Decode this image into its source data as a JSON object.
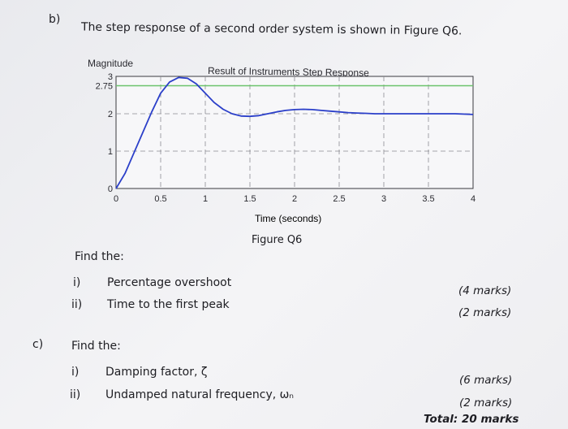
{
  "part_b": {
    "letter": "b)",
    "question": "The step response of a second order system is shown in Figure Q6.",
    "find_label": "Find the:",
    "items": [
      {
        "num": "i)",
        "text": "Percentage overshoot",
        "marks": "(4 marks)"
      },
      {
        "num": "ii)",
        "text": "Time to the first peak",
        "marks": "(2 marks)"
      }
    ]
  },
  "figure": {
    "caption": "Figure Q6"
  },
  "part_c": {
    "letter": "c)",
    "find_label": "Find the:",
    "items": [
      {
        "num": "i)",
        "text": "Damping factor, ζ",
        "marks": "(6 marks)"
      },
      {
        "num": "ii)",
        "text": "Undamped natural frequency, ωₙ",
        "marks": "(2 marks)"
      }
    ],
    "total": "Total: 20 marks"
  },
  "chart_data": {
    "type": "line",
    "title": "Result of Instruments Step Response",
    "xlabel": "Time (seconds)",
    "ylabel": "Magnitude",
    "xlim": [
      0,
      4
    ],
    "ylim": [
      0,
      3
    ],
    "x_ticks": [
      "0",
      "0.5",
      "1",
      "1.5",
      "2",
      "2.5",
      "3",
      "3.5",
      "4"
    ],
    "y_ticks": [
      "0",
      "1",
      "2",
      "2.75",
      "3"
    ],
    "reference_line": {
      "y": 2.75,
      "color": "#6cc36c"
    },
    "grid": true,
    "series": [
      {
        "color": "#2b3fc9",
        "x": [
          0,
          0.1,
          0.2,
          0.3,
          0.4,
          0.5,
          0.6,
          0.7,
          0.8,
          0.9,
          1.0,
          1.1,
          1.2,
          1.3,
          1.4,
          1.5,
          1.6,
          1.7,
          1.8,
          1.9,
          2.0,
          2.1,
          2.2,
          2.3,
          2.4,
          2.5,
          2.6,
          2.7,
          2.8,
          2.9,
          3.0,
          3.2,
          3.4,
          3.6,
          3.8,
          4.0
        ],
        "y": [
          0,
          0.4,
          0.95,
          1.5,
          2.05,
          2.55,
          2.85,
          2.97,
          2.95,
          2.8,
          2.55,
          2.3,
          2.12,
          2.0,
          1.94,
          1.93,
          1.95,
          2.0,
          2.05,
          2.09,
          2.11,
          2.12,
          2.11,
          2.09,
          2.07,
          2.05,
          2.03,
          2.02,
          2.01,
          2.0,
          2.0,
          2.0,
          2.0,
          2.0,
          2.0,
          1.98
        ]
      }
    ]
  }
}
